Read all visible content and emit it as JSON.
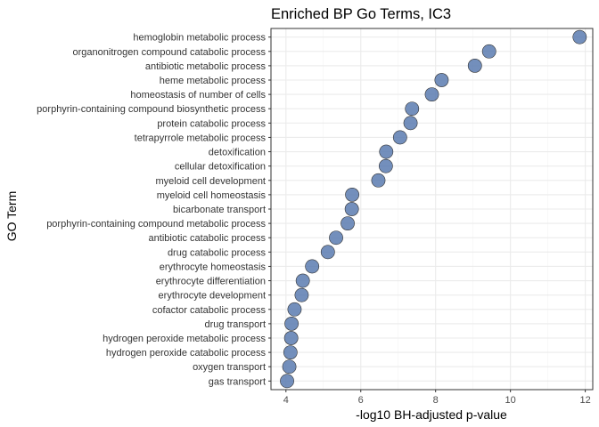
{
  "chart_data": {
    "type": "scatter",
    "title": "Enriched BP Go Terms, IC3",
    "xlabel": "-log10 BH-adjusted p-value",
    "ylabel": "GO Term",
    "xlim": [
      3.6,
      12.2
    ],
    "xticks": [
      4,
      6,
      8,
      10,
      12
    ],
    "grid": true,
    "point_color": "#5a7bb0",
    "categories": [
      "hemoglobin metabolic process",
      "organonitrogen compound catabolic process",
      "antibiotic metabolic process",
      "heme metabolic process",
      "homeostasis of number of cells",
      "porphyrin-containing compound biosynthetic process",
      "protein catabolic process",
      "tetrapyrrole metabolic process",
      "detoxification",
      "cellular detoxification",
      "myeloid cell development",
      "myeloid cell homeostasis",
      "bicarbonate transport",
      "porphyrin-containing compound metabolic process",
      "antibiotic catabolic process",
      "drug catabolic process",
      "erythrocyte homeostasis",
      "erythrocyte differentiation",
      "erythrocyte development",
      "cofactor catabolic process",
      "drug transport",
      "hydrogen peroxide metabolic process",
      "hydrogen peroxide catabolic process",
      "oxygen transport",
      "gas transport"
    ],
    "values": [
      11.85,
      9.43,
      9.05,
      8.16,
      7.9,
      7.37,
      7.33,
      7.05,
      6.68,
      6.67,
      6.47,
      5.77,
      5.76,
      5.65,
      5.34,
      5.12,
      4.7,
      4.45,
      4.42,
      4.23,
      4.15,
      4.14,
      4.12,
      4.09,
      4.03
    ]
  }
}
